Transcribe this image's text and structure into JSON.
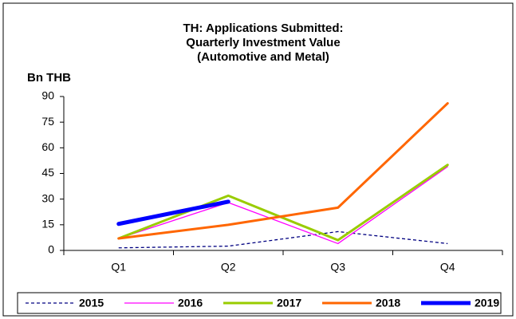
{
  "chart_data": {
    "type": "line",
    "title": [
      "TH: Applications Submitted:",
      "Quarterly Investment Value",
      "(Automotive and Metal)"
    ],
    "y_label": "Bn THB",
    "categories": [
      "Q1",
      "Q2",
      "Q3",
      "Q4"
    ],
    "series": [
      {
        "name": "2015",
        "color": "#000080",
        "dashed": true,
        "values": [
          1.5,
          2.5,
          11,
          4
        ]
      },
      {
        "name": "2016",
        "color": "#ff00ff",
        "values": [
          7,
          28,
          4,
          49
        ]
      },
      {
        "name": "2017",
        "color": "#99cc00",
        "values": [
          7,
          32,
          6,
          50
        ]
      },
      {
        "name": "2018",
        "color": "#ff6600",
        "values": [
          7,
          15,
          25,
          86
        ]
      },
      {
        "name": "2019",
        "color": "#0000ff",
        "values": [
          15.5,
          28.5,
          null,
          null
        ]
      }
    ],
    "ylim": [
      0,
      90
    ],
    "yticks": [
      0,
      15,
      30,
      45,
      60,
      75,
      90
    ],
    "legend": "bottom"
  }
}
